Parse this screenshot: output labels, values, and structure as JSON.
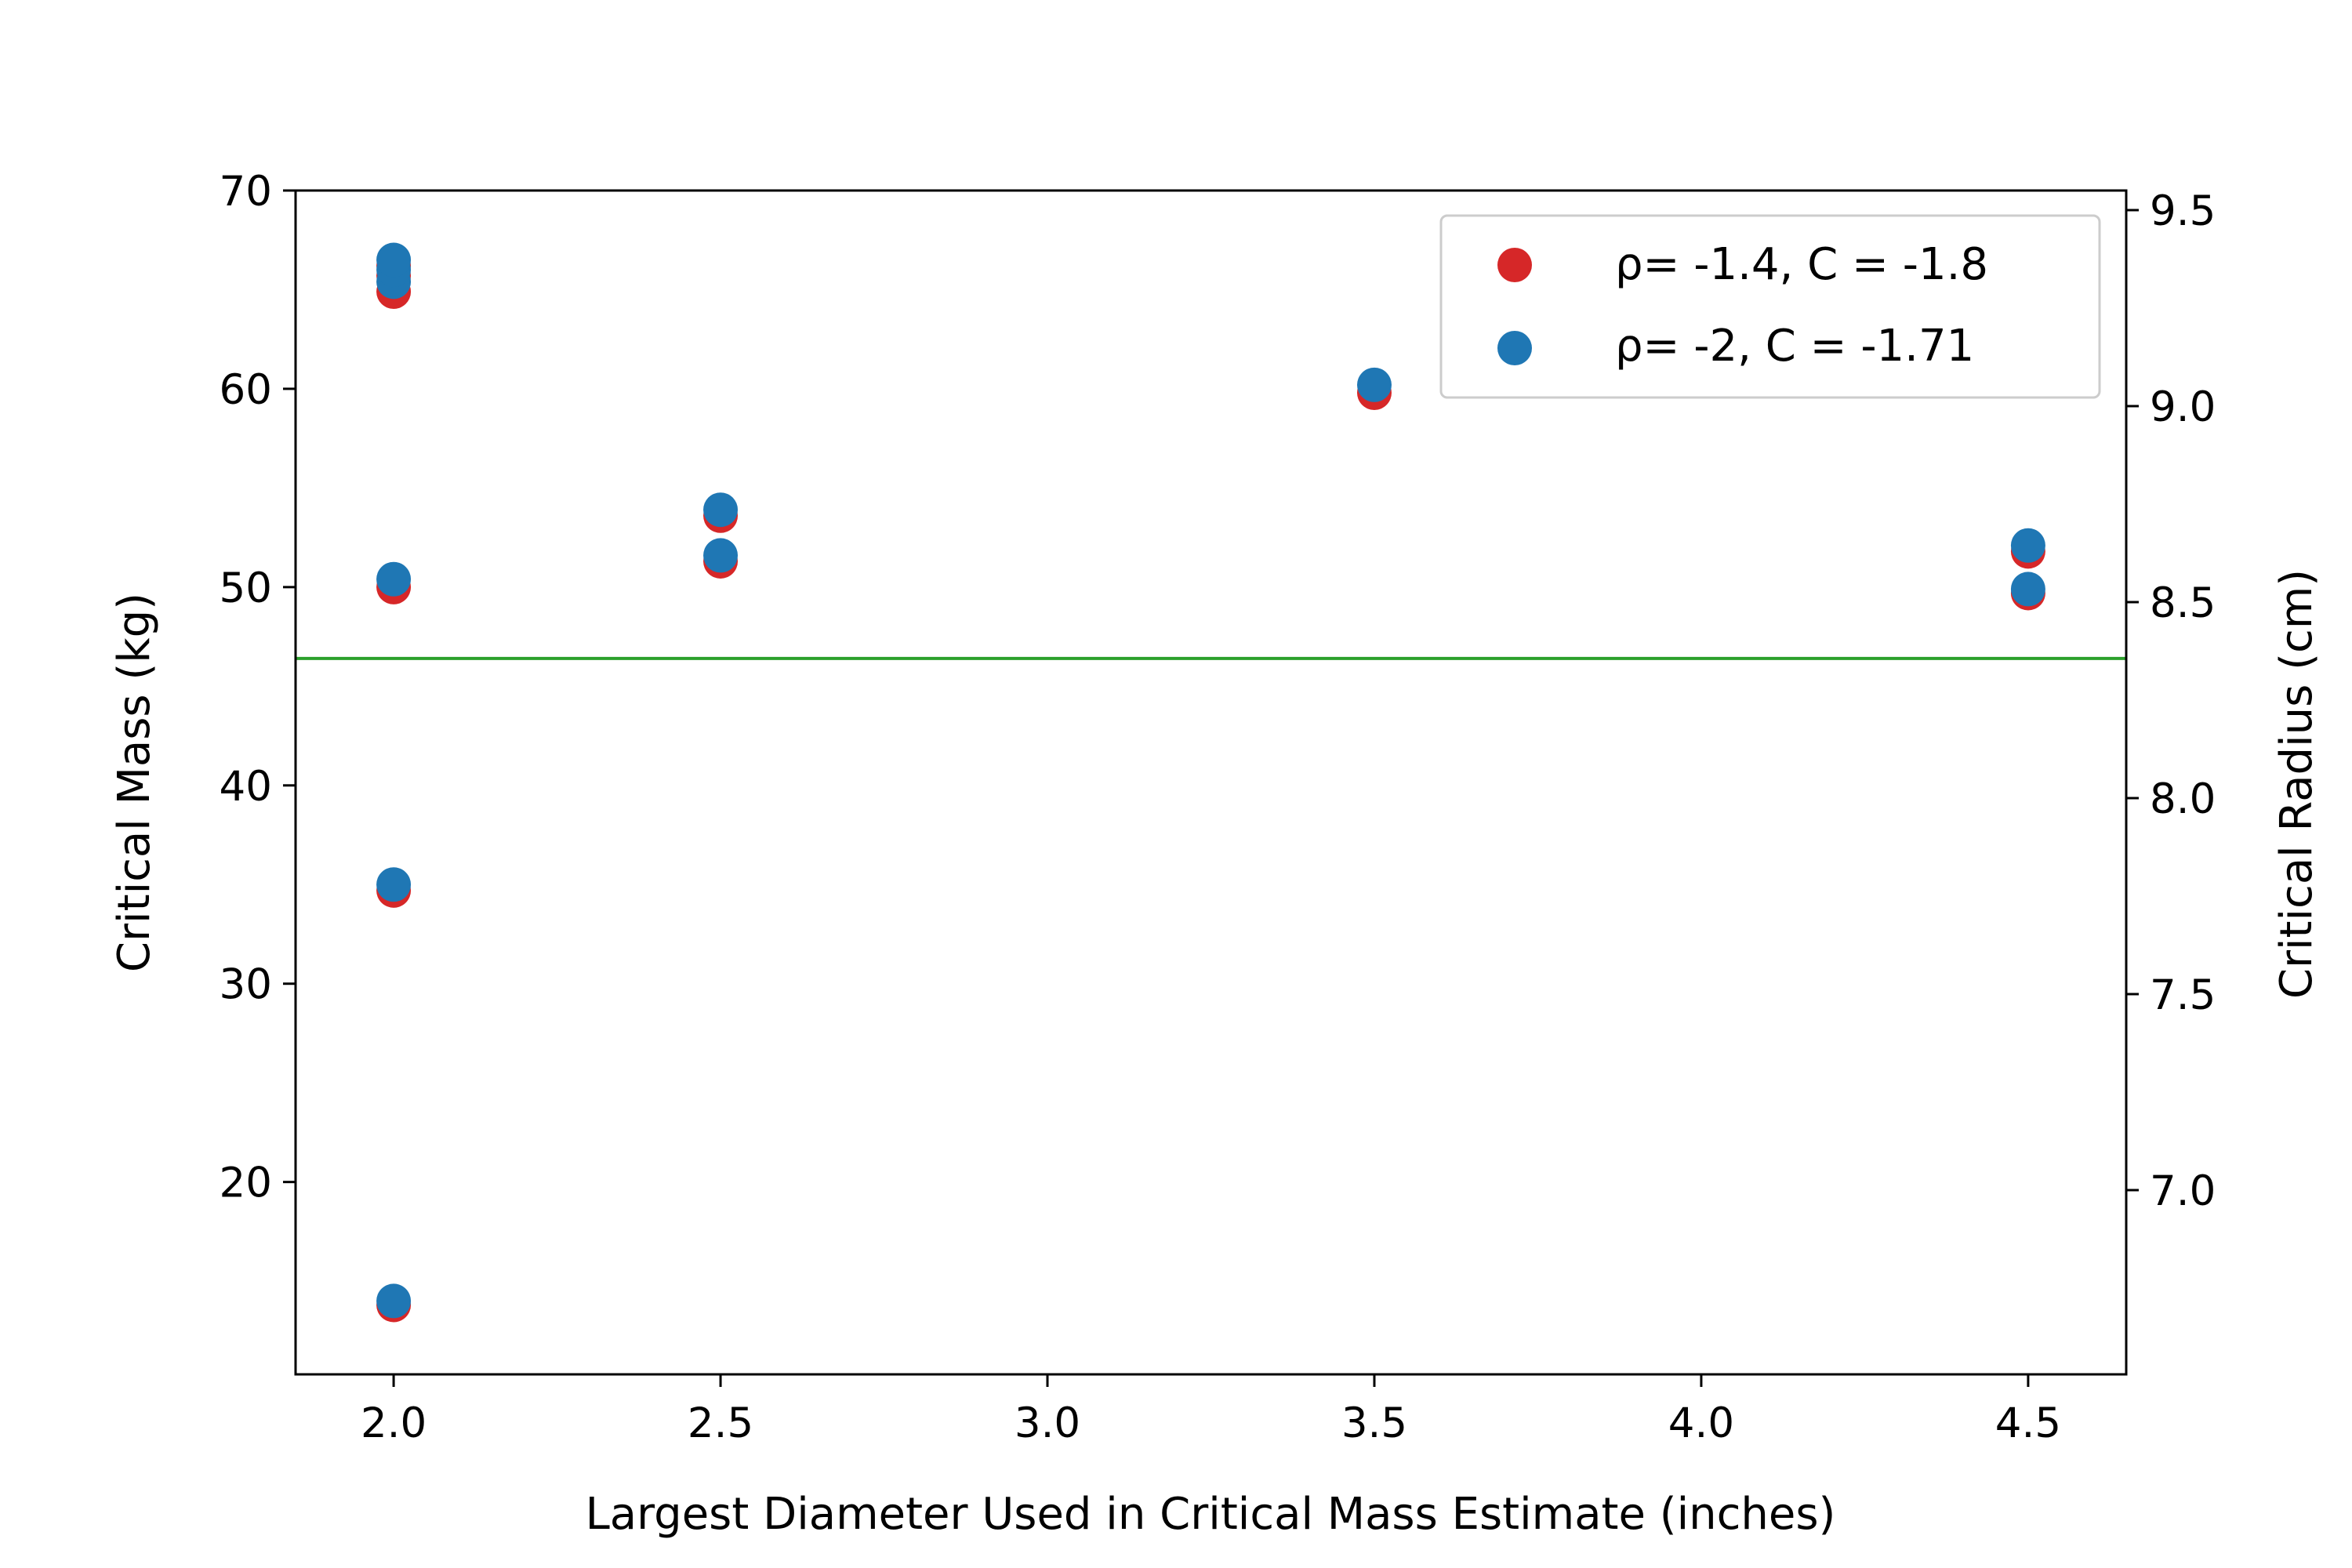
{
  "chart_data": {
    "type": "scatter",
    "xlabel": "Largest Diameter Used in Critical Mass Estimate (inches)",
    "ylabel": "Critical Mass (kg)",
    "ylabel_right": "Critical Radius (cm)",
    "xlim": [
      1.85,
      4.65
    ],
    "ylim": [
      10.3,
      70
    ],
    "ylim_right": [
      6.53,
      9.55
    ],
    "x_ticks": [
      "2.0",
      "2.5",
      "3.0",
      "3.5",
      "4.0",
      "4.5"
    ],
    "y_ticks": [
      "20",
      "30",
      "40",
      "50",
      "60",
      "70"
    ],
    "y_right_ticks": [
      "7.0",
      "7.5",
      "8.0",
      "8.5",
      "9.0",
      "9.5"
    ],
    "grid": false,
    "legend_placement": "top-right",
    "reference_line": {
      "y": 46.4,
      "color": "#2ca02c"
    },
    "series": [
      {
        "name": "ρ= -1.4, C = -1.8",
        "color": "#d62728",
        "points": [
          [
            2.0,
            13.8
          ],
          [
            2.0,
            34.7
          ],
          [
            2.0,
            50.0
          ],
          [
            2.0,
            64.9
          ],
          [
            2.0,
            65.7
          ],
          [
            2.0,
            66.2
          ],
          [
            2.5,
            51.3
          ],
          [
            2.5,
            53.6
          ],
          [
            3.5,
            59.8
          ],
          [
            4.5,
            49.7
          ],
          [
            4.5,
            51.8
          ]
        ]
      },
      {
        "name": "ρ= -2, C = -1.71",
        "color": "#1f77b4",
        "points": [
          [
            2.0,
            14.0
          ],
          [
            2.0,
            35.0
          ],
          [
            2.0,
            50.4
          ],
          [
            2.0,
            65.4
          ],
          [
            2.0,
            66.0
          ],
          [
            2.0,
            66.5
          ],
          [
            2.5,
            51.6
          ],
          [
            2.5,
            53.9
          ],
          [
            3.5,
            60.2
          ],
          [
            4.5,
            49.9
          ],
          [
            4.5,
            52.1
          ]
        ]
      }
    ]
  }
}
